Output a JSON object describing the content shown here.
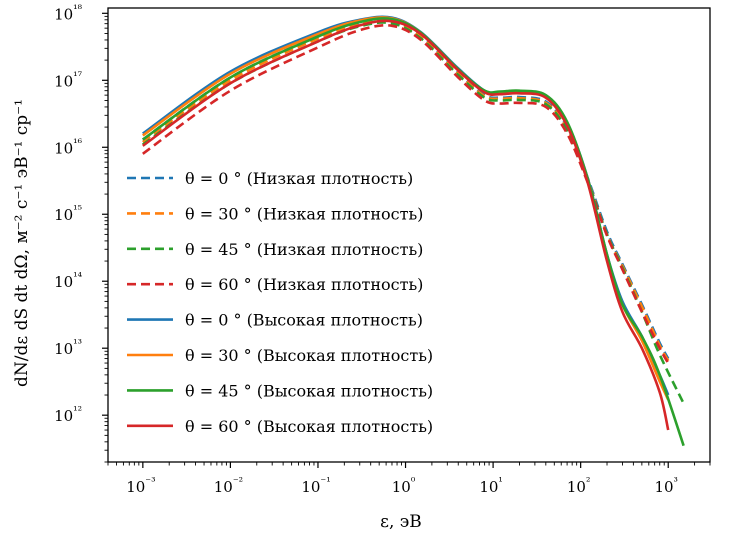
{
  "chart_data": {
    "type": "line",
    "xlabel": "ε, эВ",
    "ylabel": "dN/dε dS dt dΩ, м⁻² с⁻¹ эВ⁻¹ ср⁻¹",
    "x_scale": "log",
    "y_scale": "log",
    "xlim": [
      0.0004,
      3000
    ],
    "ylim": [
      200000000000.0,
      1.2e+18
    ],
    "x_ticks": [
      "10⁻³",
      "10⁻²",
      "10⁻¹",
      "10⁰",
      "10¹",
      "10²",
      "10³"
    ],
    "y_ticks": [
      "10¹²",
      "10¹³",
      "10¹⁴",
      "10¹⁵",
      "10¹⁶",
      "10¹⁷",
      "10¹⁸"
    ],
    "grid": false,
    "legend_placement": "lower-left",
    "series": [
      {
        "name": "θ = 0 ° (Низкая плотность)",
        "style": "dashed",
        "color": "#1f77b4",
        "points": [
          [
            0.001,
            1.3e+16
          ],
          [
            0.01,
            1.1e+17
          ],
          [
            0.1,
            4.5e+17
          ],
          [
            0.3,
            7.2e+17
          ],
          [
            0.7,
            7.8e+17
          ],
          [
            1.5,
            4.6e+17
          ],
          [
            4,
            1.3e+17
          ],
          [
            8,
            6e+16
          ],
          [
            12,
            5.5e+16
          ],
          [
            20,
            5.6e+16
          ],
          [
            40,
            4.8e+16
          ],
          [
            70,
            2e+16
          ],
          [
            120,
            3500000000000000.0
          ],
          [
            200,
            550000000000000.0
          ],
          [
            300,
            180000000000000.0
          ],
          [
            500,
            45000000000000.0
          ],
          [
            800,
            12000000000000.0
          ],
          [
            1000,
            7000000000000.0
          ]
        ]
      },
      {
        "name": "θ = 30 ° (Низкая плотность)",
        "style": "dashed",
        "color": "#ff7f0e",
        "points": [
          [
            0.001,
            1.2e+16
          ],
          [
            0.01,
            1e+17
          ],
          [
            0.1,
            4.2e+17
          ],
          [
            0.3,
            6.9e+17
          ],
          [
            0.7,
            7.5e+17
          ],
          [
            1.5,
            4.4e+17
          ],
          [
            4,
            1.25e+17
          ],
          [
            8,
            5.8e+16
          ],
          [
            12,
            5.3e+16
          ],
          [
            20,
            5.4e+16
          ],
          [
            40,
            4.6e+16
          ],
          [
            70,
            1.9e+16
          ],
          [
            120,
            3300000000000000.0
          ],
          [
            200,
            500000000000000.0
          ],
          [
            300,
            170000000000000.0
          ],
          [
            500,
            42000000000000.0
          ],
          [
            800,
            11000000000000.0
          ],
          [
            1000,
            6500000000000.0
          ]
        ]
      },
      {
        "name": "θ = 45 ° (Низкая плотность)",
        "style": "dashed",
        "color": "#2ca02c",
        "points": [
          [
            0.001,
            1.1e+16
          ],
          [
            0.01,
            9e+16
          ],
          [
            0.1,
            3.8e+17
          ],
          [
            0.3,
            6.4e+17
          ],
          [
            0.7,
            7.1e+17
          ],
          [
            1.5,
            4.2e+17
          ],
          [
            4,
            1.2e+17
          ],
          [
            8,
            5.5e+16
          ],
          [
            12,
            5e+16
          ],
          [
            20,
            5.1e+16
          ],
          [
            40,
            4.4e+16
          ],
          [
            70,
            1.8e+16
          ],
          [
            120,
            3200000000000000.0
          ],
          [
            200,
            500000000000000.0
          ],
          [
            300,
            160000000000000.0
          ],
          [
            500,
            35000000000000.0
          ],
          [
            800,
            8000000000000.0
          ],
          [
            1500,
            1500000000000.0
          ]
        ]
      },
      {
        "name": "θ = 60 ° (Низкая плотность)",
        "style": "dashed",
        "color": "#d62728",
        "points": [
          [
            0.001,
            8000000000000000.0
          ],
          [
            0.01,
            7e+16
          ],
          [
            0.1,
            3.1e+17
          ],
          [
            0.3,
            5.6e+17
          ],
          [
            0.7,
            6.5e+17
          ],
          [
            1.5,
            4e+17
          ],
          [
            4,
            1.1e+17
          ],
          [
            8,
            5e+16
          ],
          [
            12,
            4.5e+16
          ],
          [
            20,
            4.6e+16
          ],
          [
            40,
            4e+16
          ],
          [
            70,
            1.6e+16
          ],
          [
            120,
            3000000000000000.0
          ],
          [
            200,
            480000000000000.0
          ],
          [
            300,
            150000000000000.0
          ],
          [
            500,
            35000000000000.0
          ],
          [
            800,
            10000000000000.0
          ],
          [
            1000,
            6000000000000.0
          ]
        ]
      },
      {
        "name": "θ = 0 ° (Высокая плотность)",
        "style": "solid",
        "color": "#1f77b4",
        "points": [
          [
            0.001,
            1.6e+16
          ],
          [
            0.01,
            1.35e+17
          ],
          [
            0.1,
            5.2e+17
          ],
          [
            0.3,
            8e+17
          ],
          [
            0.7,
            8.6e+17
          ],
          [
            1.5,
            5.2e+17
          ],
          [
            4,
            1.5e+17
          ],
          [
            8,
            7e+16
          ],
          [
            12,
            6.6e+16
          ],
          [
            20,
            6.8e+16
          ],
          [
            40,
            5.8e+16
          ],
          [
            70,
            2.3e+16
          ],
          [
            120,
            3500000000000000.0
          ],
          [
            200,
            250000000000000.0
          ],
          [
            300,
            50000000000000.0
          ],
          [
            500,
            15000000000000.0
          ],
          [
            800,
            4000000000000.0
          ],
          [
            1000,
            2000000000000.0
          ]
        ]
      },
      {
        "name": "θ = 30 ° (Высокая плотность)",
        "style": "solid",
        "color": "#ff7f0e",
        "points": [
          [
            0.001,
            1.5e+16
          ],
          [
            0.01,
            1.25e+17
          ],
          [
            0.1,
            4.9e+17
          ],
          [
            0.3,
            7.8e+17
          ],
          [
            0.7,
            8.4e+17
          ],
          [
            1.5,
            5.1e+17
          ],
          [
            4,
            1.45e+17
          ],
          [
            8,
            6.8e+16
          ],
          [
            12,
            6.4e+16
          ],
          [
            20,
            6.6e+16
          ],
          [
            40,
            5.6e+16
          ],
          [
            70,
            2.2e+16
          ],
          [
            120,
            3400000000000000.0
          ],
          [
            200,
            230000000000000.0
          ],
          [
            300,
            45000000000000.0
          ],
          [
            500,
            13000000000000.0
          ],
          [
            800,
            3200000000000.0
          ],
          [
            1000,
            1700000000000.0
          ]
        ]
      },
      {
        "name": "θ = 45 ° (Высокая плотность)",
        "style": "solid",
        "color": "#2ca02c",
        "points": [
          [
            0.001,
            1.3e+16
          ],
          [
            0.01,
            1.1e+17
          ],
          [
            0.1,
            4.5e+17
          ],
          [
            0.3,
            7.4e+17
          ],
          [
            0.7,
            8.2e+17
          ],
          [
            1.5,
            5.1e+17
          ],
          [
            4,
            1.45e+17
          ],
          [
            8,
            7e+16
          ],
          [
            12,
            6.8e+16
          ],
          [
            20,
            7e+16
          ],
          [
            40,
            6e+16
          ],
          [
            70,
            2.4e+16
          ],
          [
            120,
            3400000000000000.0
          ],
          [
            200,
            250000000000000.0
          ],
          [
            300,
            45000000000000.0
          ],
          [
            500,
            15000000000000.0
          ],
          [
            800,
            4000000000000.0
          ],
          [
            1500,
            350000000000.0
          ]
        ]
      },
      {
        "name": "θ = 60 ° (Высокая плотность)",
        "style": "solid",
        "color": "#d62728",
        "points": [
          [
            0.001,
            1.05e+16
          ],
          [
            0.01,
            9e+16
          ],
          [
            0.1,
            3.8e+17
          ],
          [
            0.3,
            6.6e+17
          ],
          [
            0.7,
            7.6e+17
          ],
          [
            1.5,
            4.9e+17
          ],
          [
            4,
            1.4e+17
          ],
          [
            8,
            6.6e+16
          ],
          [
            12,
            6.2e+16
          ],
          [
            20,
            6.4e+16
          ],
          [
            40,
            5.5e+16
          ],
          [
            70,
            2.1e+16
          ],
          [
            120,
            3000000000000000.0
          ],
          [
            200,
            200000000000000.0
          ],
          [
            300,
            35000000000000.0
          ],
          [
            500,
            10000000000000.0
          ],
          [
            800,
            2200000000000.0
          ],
          [
            1000,
            600000000000.0
          ]
        ]
      }
    ]
  }
}
